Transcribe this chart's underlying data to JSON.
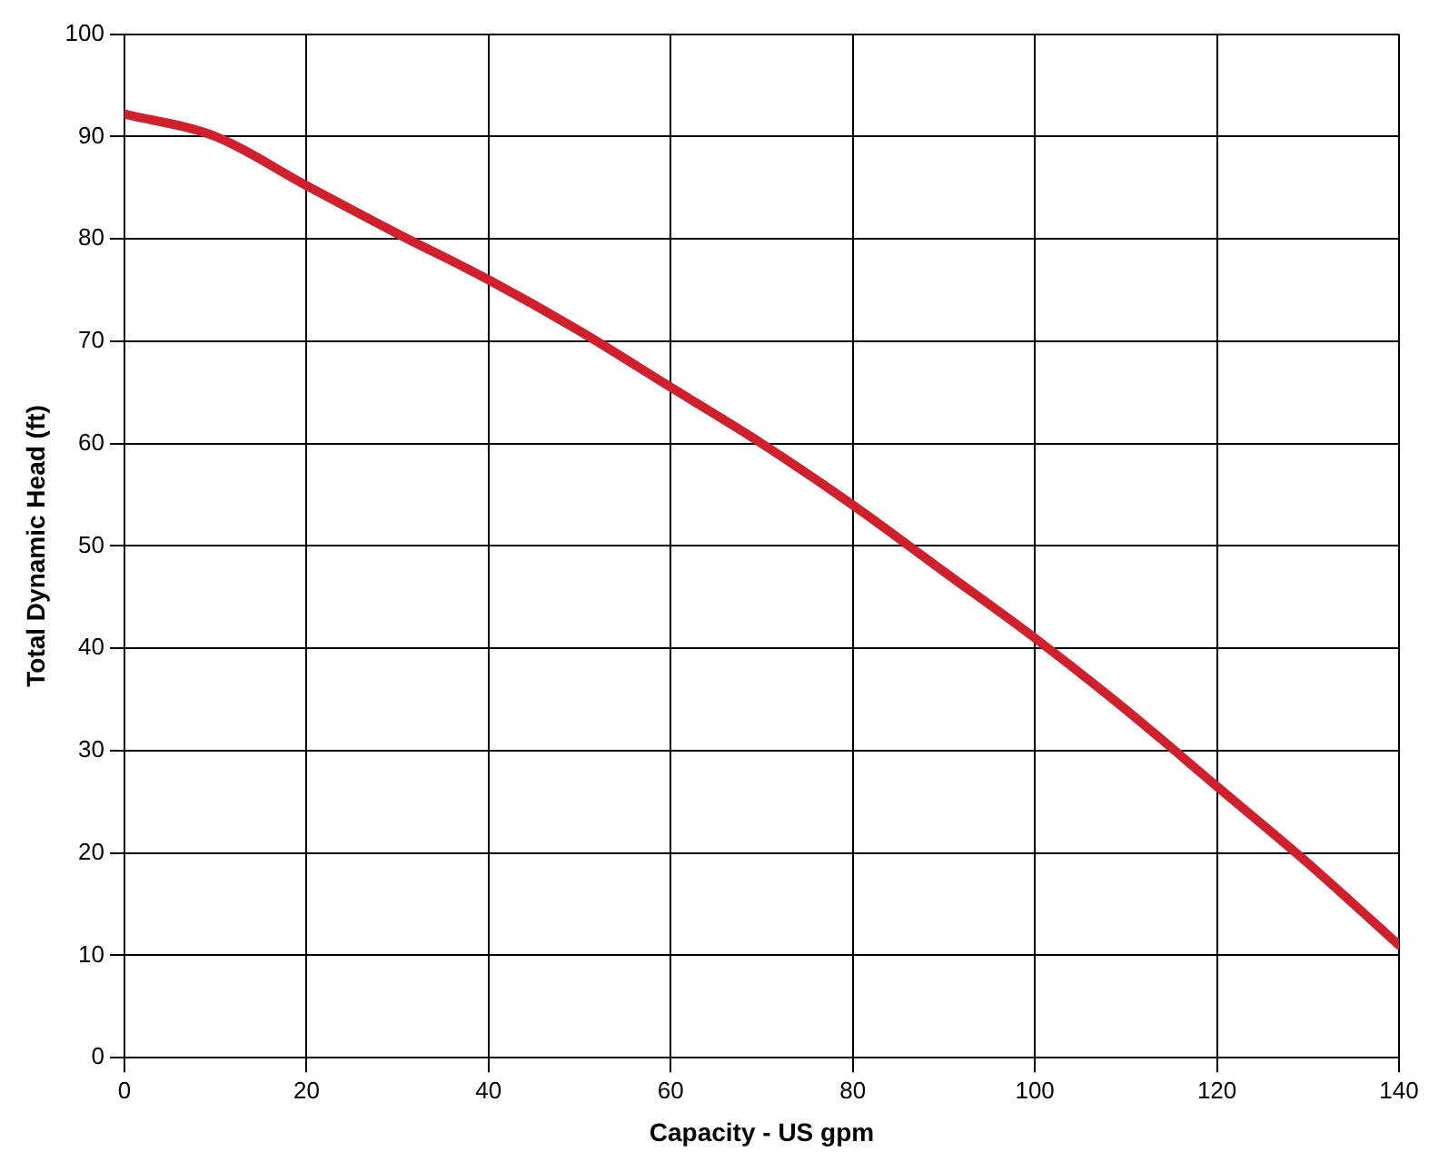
{
  "chart_data": {
    "type": "line",
    "xlabel": "Capacity - US gpm",
    "ylabel": "Total Dynamic Head (ft)",
    "x": [
      0,
      10,
      20,
      30,
      40,
      50,
      60,
      70,
      80,
      90,
      100,
      110,
      120,
      130,
      140
    ],
    "series": [
      {
        "color": "#d0202e",
        "values": [
          92.2,
          90,
          85.2,
          80.5,
          76,
          71,
          65.5,
          60,
          54,
          47.5,
          41,
          34,
          26.5,
          19,
          11
        ]
      }
    ],
    "xlim": [
      0,
      140
    ],
    "xticks": [
      0,
      20,
      40,
      60,
      80,
      100,
      120,
      140
    ],
    "ylim": [
      0,
      100
    ],
    "yticks": [
      0,
      10,
      20,
      30,
      40,
      50,
      60,
      70,
      80,
      90,
      100
    ],
    "grid": true,
    "legend": false,
    "marker": "none",
    "line_style": "solid"
  }
}
